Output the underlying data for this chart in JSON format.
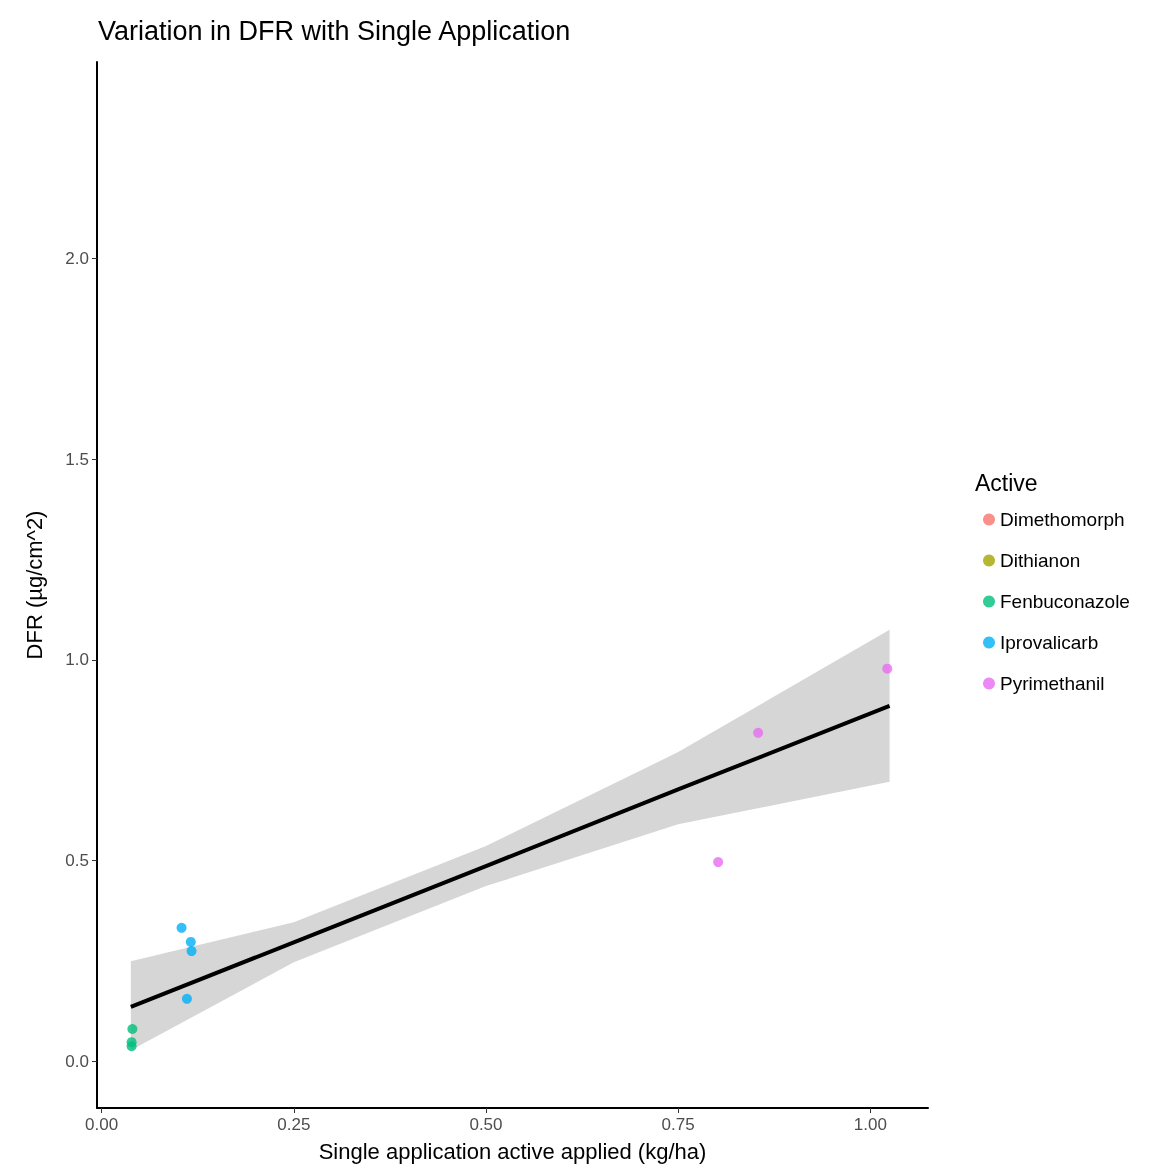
{
  "chart_data": {
    "type": "scatter",
    "title": "Variation in DFR with Single Application",
    "xlabel": "Single application active applied (kg/ha)",
    "ylabel": "DFR (µg/cm^2)",
    "legend_title": "Active",
    "xlim": [
      -0.006,
      1.075
    ],
    "ylim": [
      -0.117,
      2.49
    ],
    "xticks": [
      {
        "value": 0,
        "label": "0.00"
      },
      {
        "value": 0.25,
        "label": "0.25"
      },
      {
        "value": 0.5,
        "label": "0.50"
      },
      {
        "value": 0.75,
        "label": "0.75"
      },
      {
        "value": 1,
        "label": "1.00"
      }
    ],
    "yticks": [
      {
        "value": 0,
        "label": "0.0"
      },
      {
        "value": 0.5,
        "label": "0.5"
      },
      {
        "value": 1,
        "label": "1.0"
      },
      {
        "value": 1.5,
        "label": "1.5"
      },
      {
        "value": 2,
        "label": "2.0"
      }
    ],
    "grid": false,
    "legend": "right",
    "marker": "circle",
    "series": [
      {
        "name": "Dimethomorph",
        "color": "#f8766d"
      },
      {
        "name": "Dithianon",
        "color": "#a3a500"
      },
      {
        "name": "Fenbuconazole",
        "color": "#00bf7d",
        "x": [
          0.04,
          0.039,
          0.039
        ],
        "values": [
          0.08,
          0.047,
          0.037
        ]
      },
      {
        "name": "Iprovalicarb",
        "color": "#00b0f6",
        "x": [
          0.104,
          0.116,
          0.117,
          0.111
        ],
        "values": [
          0.332,
          0.297,
          0.274,
          0.155
        ]
      },
      {
        "name": "Pyrimethanil",
        "color": "#e76bf3",
        "x": [
          0.854,
          1.022,
          0.802
        ],
        "values": [
          0.818,
          0.978,
          0.496
        ]
      },
      {
        "type": "line",
        "color": "#000000",
        "marker": "none",
        "x": [
          0.038,
          0.25,
          0.5,
          0.75,
          1.025
        ],
        "values": [
          0.135,
          0.296,
          0.486,
          0.677,
          0.885
        ],
        "lower": [
          0.027,
          0.246,
          0.436,
          0.59,
          0.696
        ],
        "upper": [
          0.249,
          0.346,
          0.536,
          0.77,
          1.075
        ]
      }
    ]
  }
}
